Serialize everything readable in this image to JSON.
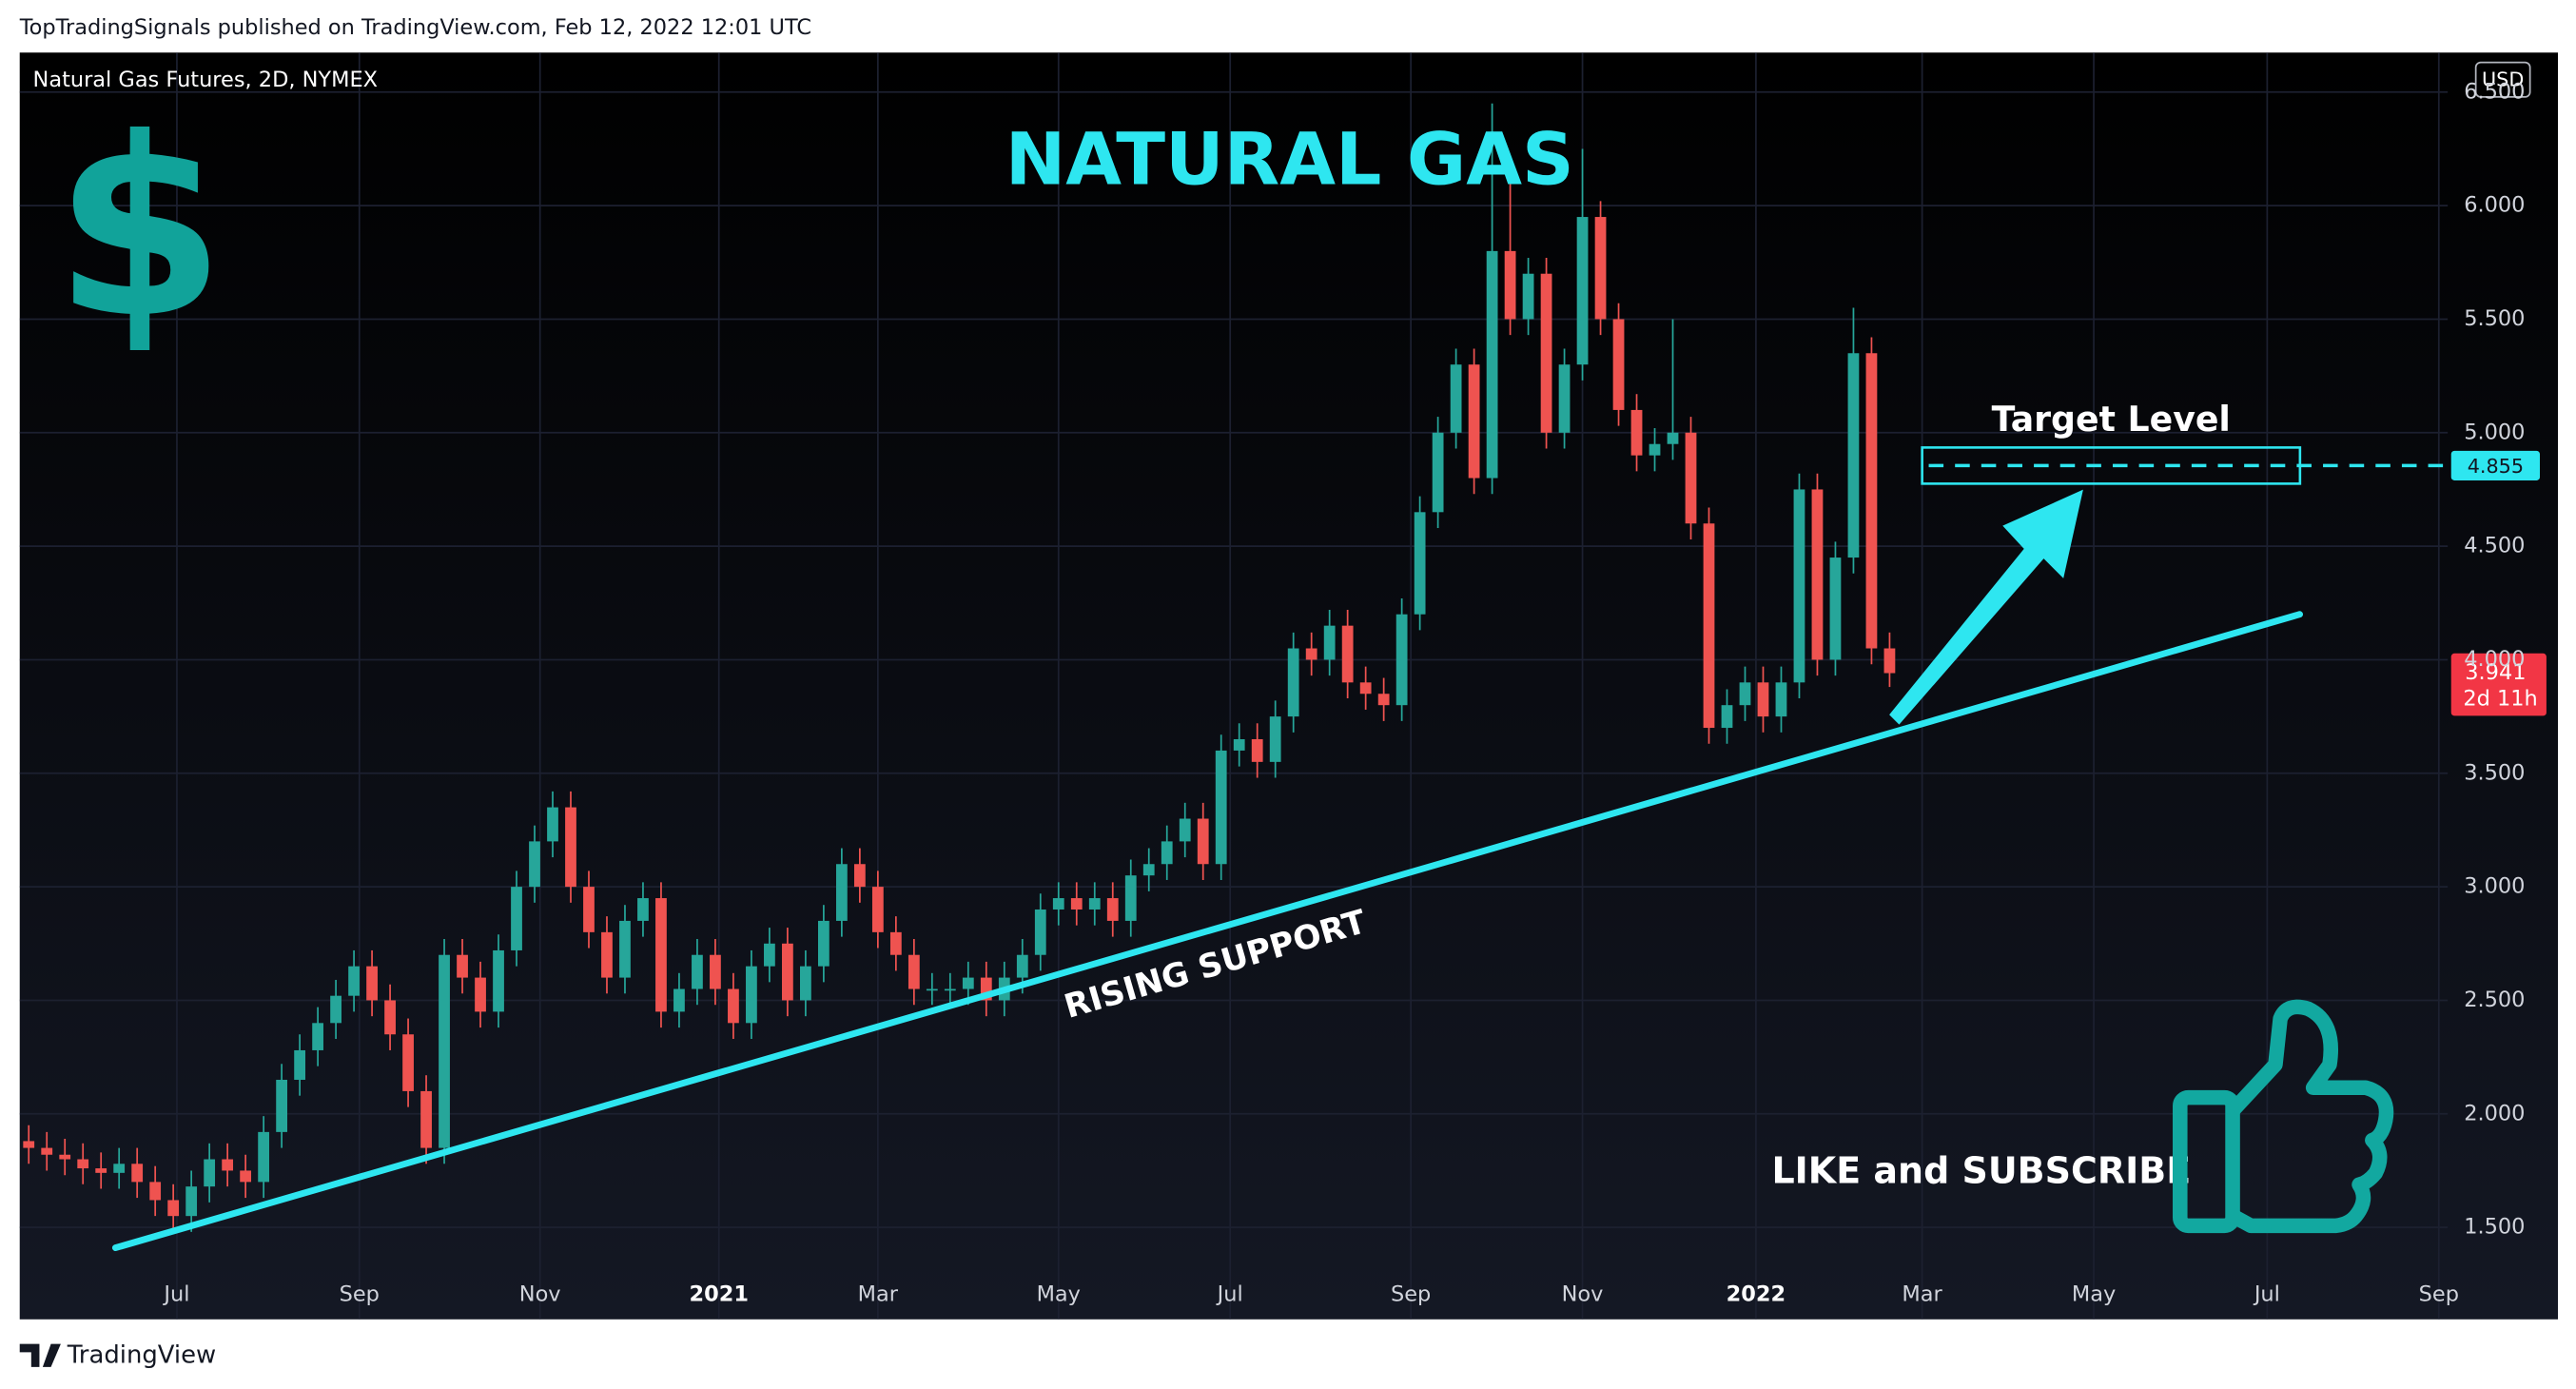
{
  "header": {
    "publisher": "TopTradingSignals published on TradingView.com, Feb 12, 2022 12:01 UTC",
    "footer_logo": "TradingView"
  },
  "chart_data": {
    "type": "candlestick",
    "symbol": "Natural Gas Futures, 2D, NYMEX",
    "title": "NATURAL GAS",
    "icon_text": "$",
    "currency": "USD",
    "open": [
      1.88,
      1.85,
      1.82,
      1.8,
      1.76,
      1.74,
      1.78,
      1.7,
      1.62,
      1.55,
      1.68,
      1.8,
      1.75,
      1.7,
      1.92,
      2.15,
      2.28,
      2.4,
      2.52,
      2.65,
      2.5,
      2.35,
      2.1,
      1.85,
      2.7,
      2.6,
      2.45,
      2.72,
      3.0,
      3.2,
      3.35,
      3.0,
      2.8,
      2.6,
      2.85,
      2.95,
      2.45,
      2.55,
      2.7,
      2.55,
      2.4,
      2.65,
      2.75,
      2.5,
      2.65,
      2.85,
      3.1,
      3.0,
      2.8,
      2.7,
      2.55,
      2.55,
      2.55,
      2.6,
      2.5,
      2.6,
      2.7,
      2.9,
      2.95,
      2.9,
      2.95,
      2.85,
      3.05,
      3.1,
      3.2,
      3.3,
      3.1,
      3.6,
      3.65,
      3.55,
      3.75,
      4.05,
      4.0,
      4.15,
      3.9,
      3.85,
      3.8,
      4.2,
      4.65,
      5.0,
      5.3,
      4.8,
      5.8,
      5.5,
      5.7,
      5.0,
      5.3,
      5.95,
      5.5,
      5.1,
      4.9,
      4.95,
      5.0,
      4.6,
      3.7,
      3.8,
      3.9,
      3.75,
      3.9,
      4.75,
      4.0,
      4.45,
      5.35,
      4.05
    ],
    "high": [
      1.95,
      1.92,
      1.89,
      1.87,
      1.83,
      1.85,
      1.85,
      1.77,
      1.69,
      1.75,
      1.87,
      1.87,
      1.82,
      1.99,
      2.22,
      2.35,
      2.47,
      2.59,
      2.72,
      2.72,
      2.57,
      2.42,
      2.17,
      2.77,
      2.77,
      2.67,
      2.79,
      3.07,
      3.27,
      3.42,
      3.42,
      3.07,
      2.87,
      2.92,
      3.02,
      3.02,
      2.62,
      2.77,
      2.77,
      2.62,
      2.72,
      2.82,
      2.82,
      2.72,
      2.92,
      3.17,
      3.17,
      3.07,
      2.87,
      2.77,
      2.62,
      2.62,
      2.67,
      2.67,
      2.67,
      2.77,
      2.97,
      3.02,
      3.02,
      3.02,
      3.02,
      3.12,
      3.17,
      3.27,
      3.37,
      3.37,
      3.67,
      3.72,
      3.72,
      3.82,
      4.12,
      4.12,
      4.22,
      4.22,
      3.97,
      3.92,
      4.27,
      4.72,
      5.07,
      5.37,
      5.37,
      6.45,
      6.1,
      5.77,
      5.77,
      5.37,
      6.25,
      6.02,
      5.57,
      5.17,
      5.02,
      5.5,
      5.07,
      4.67,
      3.87,
      3.97,
      3.97,
      3.97,
      4.82,
      4.82,
      4.52,
      5.55,
      5.42,
      4.12
    ],
    "low": [
      1.78,
      1.75,
      1.73,
      1.69,
      1.67,
      1.67,
      1.63,
      1.55,
      1.48,
      1.48,
      1.61,
      1.68,
      1.63,
      1.63,
      1.85,
      2.08,
      2.21,
      2.33,
      2.45,
      2.43,
      2.28,
      2.03,
      1.78,
      1.78,
      2.53,
      2.38,
      2.38,
      2.65,
      2.93,
      3.13,
      2.93,
      2.73,
      2.53,
      2.53,
      2.78,
      2.38,
      2.38,
      2.48,
      2.48,
      2.33,
      2.33,
      2.58,
      2.43,
      2.43,
      2.58,
      2.78,
      2.93,
      2.73,
      2.63,
      2.48,
      2.48,
      2.48,
      2.48,
      2.43,
      2.43,
      2.53,
      2.63,
      2.83,
      2.83,
      2.83,
      2.78,
      2.78,
      2.98,
      3.03,
      3.13,
      3.03,
      3.03,
      3.53,
      3.48,
      3.48,
      3.68,
      3.93,
      3.93,
      3.83,
      3.78,
      3.73,
      3.73,
      4.13,
      4.58,
      4.93,
      4.73,
      4.73,
      5.43,
      5.43,
      4.93,
      4.93,
      5.23,
      5.43,
      5.03,
      4.83,
      4.83,
      4.88,
      4.53,
      3.63,
      3.63,
      3.73,
      3.68,
      3.68,
      3.83,
      3.93,
      3.93,
      4.38,
      3.98,
      3.88
    ],
    "close": [
      1.85,
      1.82,
      1.8,
      1.76,
      1.74,
      1.78,
      1.7,
      1.62,
      1.55,
      1.68,
      1.8,
      1.75,
      1.7,
      1.92,
      2.15,
      2.28,
      2.4,
      2.52,
      2.65,
      2.5,
      2.35,
      2.1,
      1.85,
      2.7,
      2.6,
      2.45,
      2.72,
      3.0,
      3.2,
      3.35,
      3.0,
      2.8,
      2.6,
      2.85,
      2.95,
      2.45,
      2.55,
      2.7,
      2.55,
      2.4,
      2.65,
      2.75,
      2.5,
      2.65,
      2.85,
      3.1,
      3.0,
      2.8,
      2.7,
      2.55,
      2.55,
      2.55,
      2.6,
      2.5,
      2.6,
      2.7,
      2.9,
      2.95,
      2.9,
      2.95,
      2.85,
      3.05,
      3.1,
      3.2,
      3.3,
      3.1,
      3.6,
      3.65,
      3.55,
      3.75,
      4.05,
      4.0,
      4.15,
      3.9,
      3.85,
      3.8,
      4.2,
      4.65,
      5.0,
      5.3,
      4.8,
      5.8,
      5.5,
      5.7,
      5.0,
      5.3,
      5.95,
      5.5,
      5.1,
      4.9,
      4.95,
      5.0,
      4.6,
      3.7,
      3.8,
      3.9,
      3.75,
      3.9,
      4.75,
      4.0,
      4.45,
      5.35,
      4.05,
      3.941
    ],
    "up_color": "#26a69a",
    "down_color": "#ef5350",
    "xlim": [
      0,
      134.4
    ],
    "xticks": [
      {
        "value": 8.7,
        "label": "Jul"
      },
      {
        "value": 18.8,
        "label": "Sep"
      },
      {
        "value": 28.8,
        "label": "Nov"
      },
      {
        "value": 38.7,
        "label": "2021"
      },
      {
        "value": 47.5,
        "label": "Mar"
      },
      {
        "value": 57.5,
        "label": "May"
      },
      {
        "value": 67,
        "label": "Jul"
      },
      {
        "value": 77,
        "label": "Sep"
      },
      {
        "value": 86.5,
        "label": "Nov"
      },
      {
        "value": 96.1,
        "label": "2022"
      },
      {
        "value": 105.3,
        "label": "Mar"
      },
      {
        "value": 114.8,
        "label": "May"
      },
      {
        "value": 124.4,
        "label": "Jul"
      },
      {
        "value": 133.9,
        "label": "Sep"
      }
    ],
    "ylim": [
      1.095,
      6.674
    ],
    "yticks": [
      {
        "value": 1.5,
        "label": "1.500"
      },
      {
        "value": 2,
        "label": "2.000"
      },
      {
        "value": 2.5,
        "label": "2.500"
      },
      {
        "value": 3,
        "label": "3.000"
      },
      {
        "value": 3.5,
        "label": "3.500"
      },
      {
        "value": 4,
        "label": "4.000"
      },
      {
        "value": 4.5,
        "label": "4.500"
      },
      {
        "value": 5,
        "label": "5.000"
      },
      {
        "value": 5.5,
        "label": "5.500"
      },
      {
        "value": 6,
        "label": "6.000"
      },
      {
        "value": 6.5,
        "label": "6.500"
      }
    ],
    "last_price": {
      "value": 3.941,
      "countdown": "2d 11h"
    },
    "target": {
      "value": 4.855,
      "title": "Target Level"
    },
    "trendline": {
      "label": "RISING SUPPORT",
      "x": [
        5.3,
        126.2
      ],
      "y": [
        1.41,
        4.2
      ],
      "color": "#2ee6f0"
    },
    "call_to_action": "LIKE and SUBSCRIBE"
  }
}
